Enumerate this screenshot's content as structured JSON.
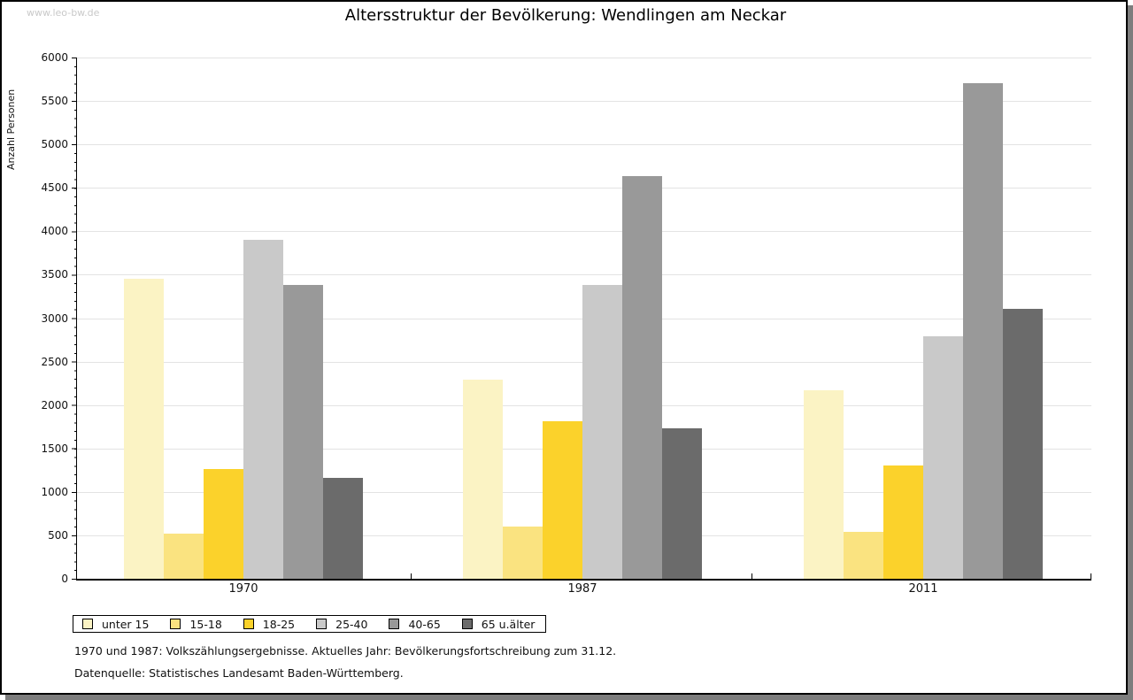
{
  "watermark": "www.leo-bw.de",
  "title": "Altersstruktur der Bevölkerung: Wendlingen am Neckar",
  "y_axis_label": "Anzahl Personen",
  "footnotes": {
    "line1": "1970 und 1987: Volkszählungsergebnisse. Aktuelles Jahr: Bevölkerungsfortschreibung zum 31.12.",
    "line2": "Datenquelle: Statistisches Landesamt Baden-Württemberg."
  },
  "colors": {
    "frame_shadow": "#7d7d7d",
    "gridline": "#e3e3e3",
    "watermark": "#c9c9c9",
    "axis": "#000000"
  },
  "chart_data": {
    "type": "bar",
    "title": "Altersstruktur der Bevölkerung: Wendlingen am Neckar",
    "xlabel": "",
    "ylabel": "Anzahl Personen",
    "categories": [
      "1970",
      "1987",
      "2011"
    ],
    "series": [
      {
        "name": "unter 15",
        "color": "#FBF3C4",
        "values": [
          3450,
          2290,
          2170
        ]
      },
      {
        "name": "15-18",
        "color": "#FAE380",
        "values": [
          520,
          600,
          540
        ]
      },
      {
        "name": "18-25",
        "color": "#FBD22B",
        "values": [
          1260,
          1810,
          1300
        ]
      },
      {
        "name": "25-40",
        "color": "#C9C9C9",
        "values": [
          3900,
          3380,
          2790
        ]
      },
      {
        "name": "40-65",
        "color": "#999999",
        "values": [
          3380,
          4640,
          5700
        ]
      },
      {
        "name": "65 u.älter",
        "color": "#6B6B6B",
        "values": [
          1160,
          1730,
          3110
        ]
      }
    ],
    "ylim": [
      0,
      6000
    ],
    "yticks": [
      0,
      500,
      1000,
      1500,
      2000,
      2500,
      3000,
      3500,
      4000,
      4500,
      5000,
      5500,
      6000
    ],
    "grid": true,
    "legend_position": "bottom"
  }
}
